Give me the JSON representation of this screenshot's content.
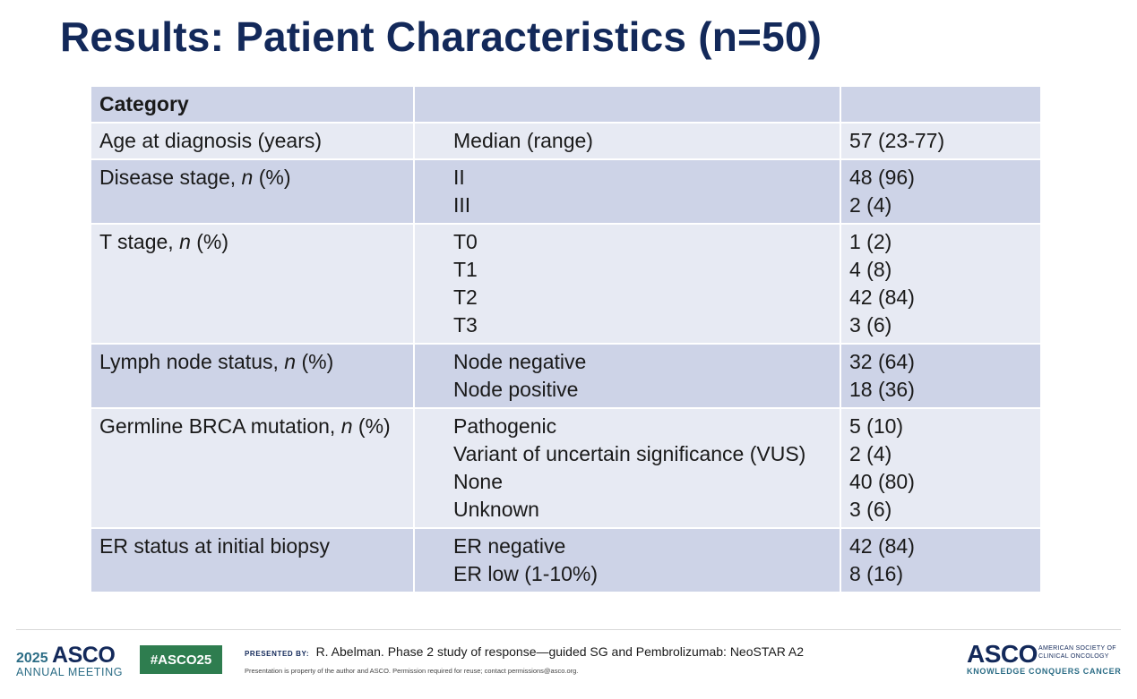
{
  "title": "Results: Patient Characteristics (n=50)",
  "table": {
    "header": [
      "Category",
      "",
      ""
    ],
    "rows": [
      {
        "shade": "light",
        "category": "Age at diagnosis (years)",
        "items": [
          "Median (range)"
        ],
        "values": [
          "57 (23-77)"
        ]
      },
      {
        "shade": "dark",
        "category_prefix": "Disease stage, ",
        "category_italic": "n",
        "category_suffix": " (%)",
        "items": [
          "II",
          "III"
        ],
        "values": [
          "48 (96)",
          "2 (4)"
        ]
      },
      {
        "shade": "light",
        "category_prefix": "T stage, ",
        "category_italic": "n",
        "category_suffix": " (%)",
        "items": [
          "T0",
          "T1",
          "T2",
          "T3"
        ],
        "values": [
          "1 (2)",
          "4 (8)",
          "42 (84)",
          "3 (6)"
        ]
      },
      {
        "shade": "dark",
        "category_prefix": "Lymph node status, ",
        "category_italic": "n",
        "category_suffix": " (%)",
        "items": [
          "Node negative",
          "Node positive"
        ],
        "values": [
          "32 (64)",
          "18 (36)"
        ]
      },
      {
        "shade": "light",
        "category_prefix": "Germline BRCA mutation, ",
        "category_italic": "n",
        "category_suffix": " (%)",
        "items": [
          "Pathogenic",
          "Variant of uncertain significance (VUS)",
          "None",
          "Unknown"
        ],
        "values": [
          "5 (10)",
          "2 (4)",
          "40 (80)",
          "3 (6)"
        ]
      },
      {
        "shade": "dark",
        "category": "ER status at initial biopsy",
        "items": [
          "ER negative",
          "ER low (1-10%)"
        ],
        "values": [
          "42 (84)",
          "8 (16)"
        ]
      }
    ]
  },
  "footer": {
    "meeting_year": "2025",
    "meeting_org": "ASCO",
    "meeting_name": "ANNUAL MEETING",
    "hashtag": "#ASCO25",
    "presented_by_label": "PRESENTED BY:",
    "presented_by_text": "R. Abelman. Phase 2 study of response—guided SG and Pembrolizumab: NeoSTAR A2",
    "property_note": "Presentation is property of the author and ASCO. Permission required for reuse; contact permissions@asco.org.",
    "org_logo": "ASCO",
    "org_name_line1": "AMERICAN SOCIETY OF",
    "org_name_line2": "CLINICAL ONCOLOGY",
    "tagline": "KNOWLEDGE CONQUERS CANCER"
  },
  "colors": {
    "title": "#13295a",
    "row_dark": "#cdd3e7",
    "row_light": "#e7eaf3",
    "hashtag_bg": "#2e7d4f",
    "accent_teal": "#2c6d86"
  }
}
